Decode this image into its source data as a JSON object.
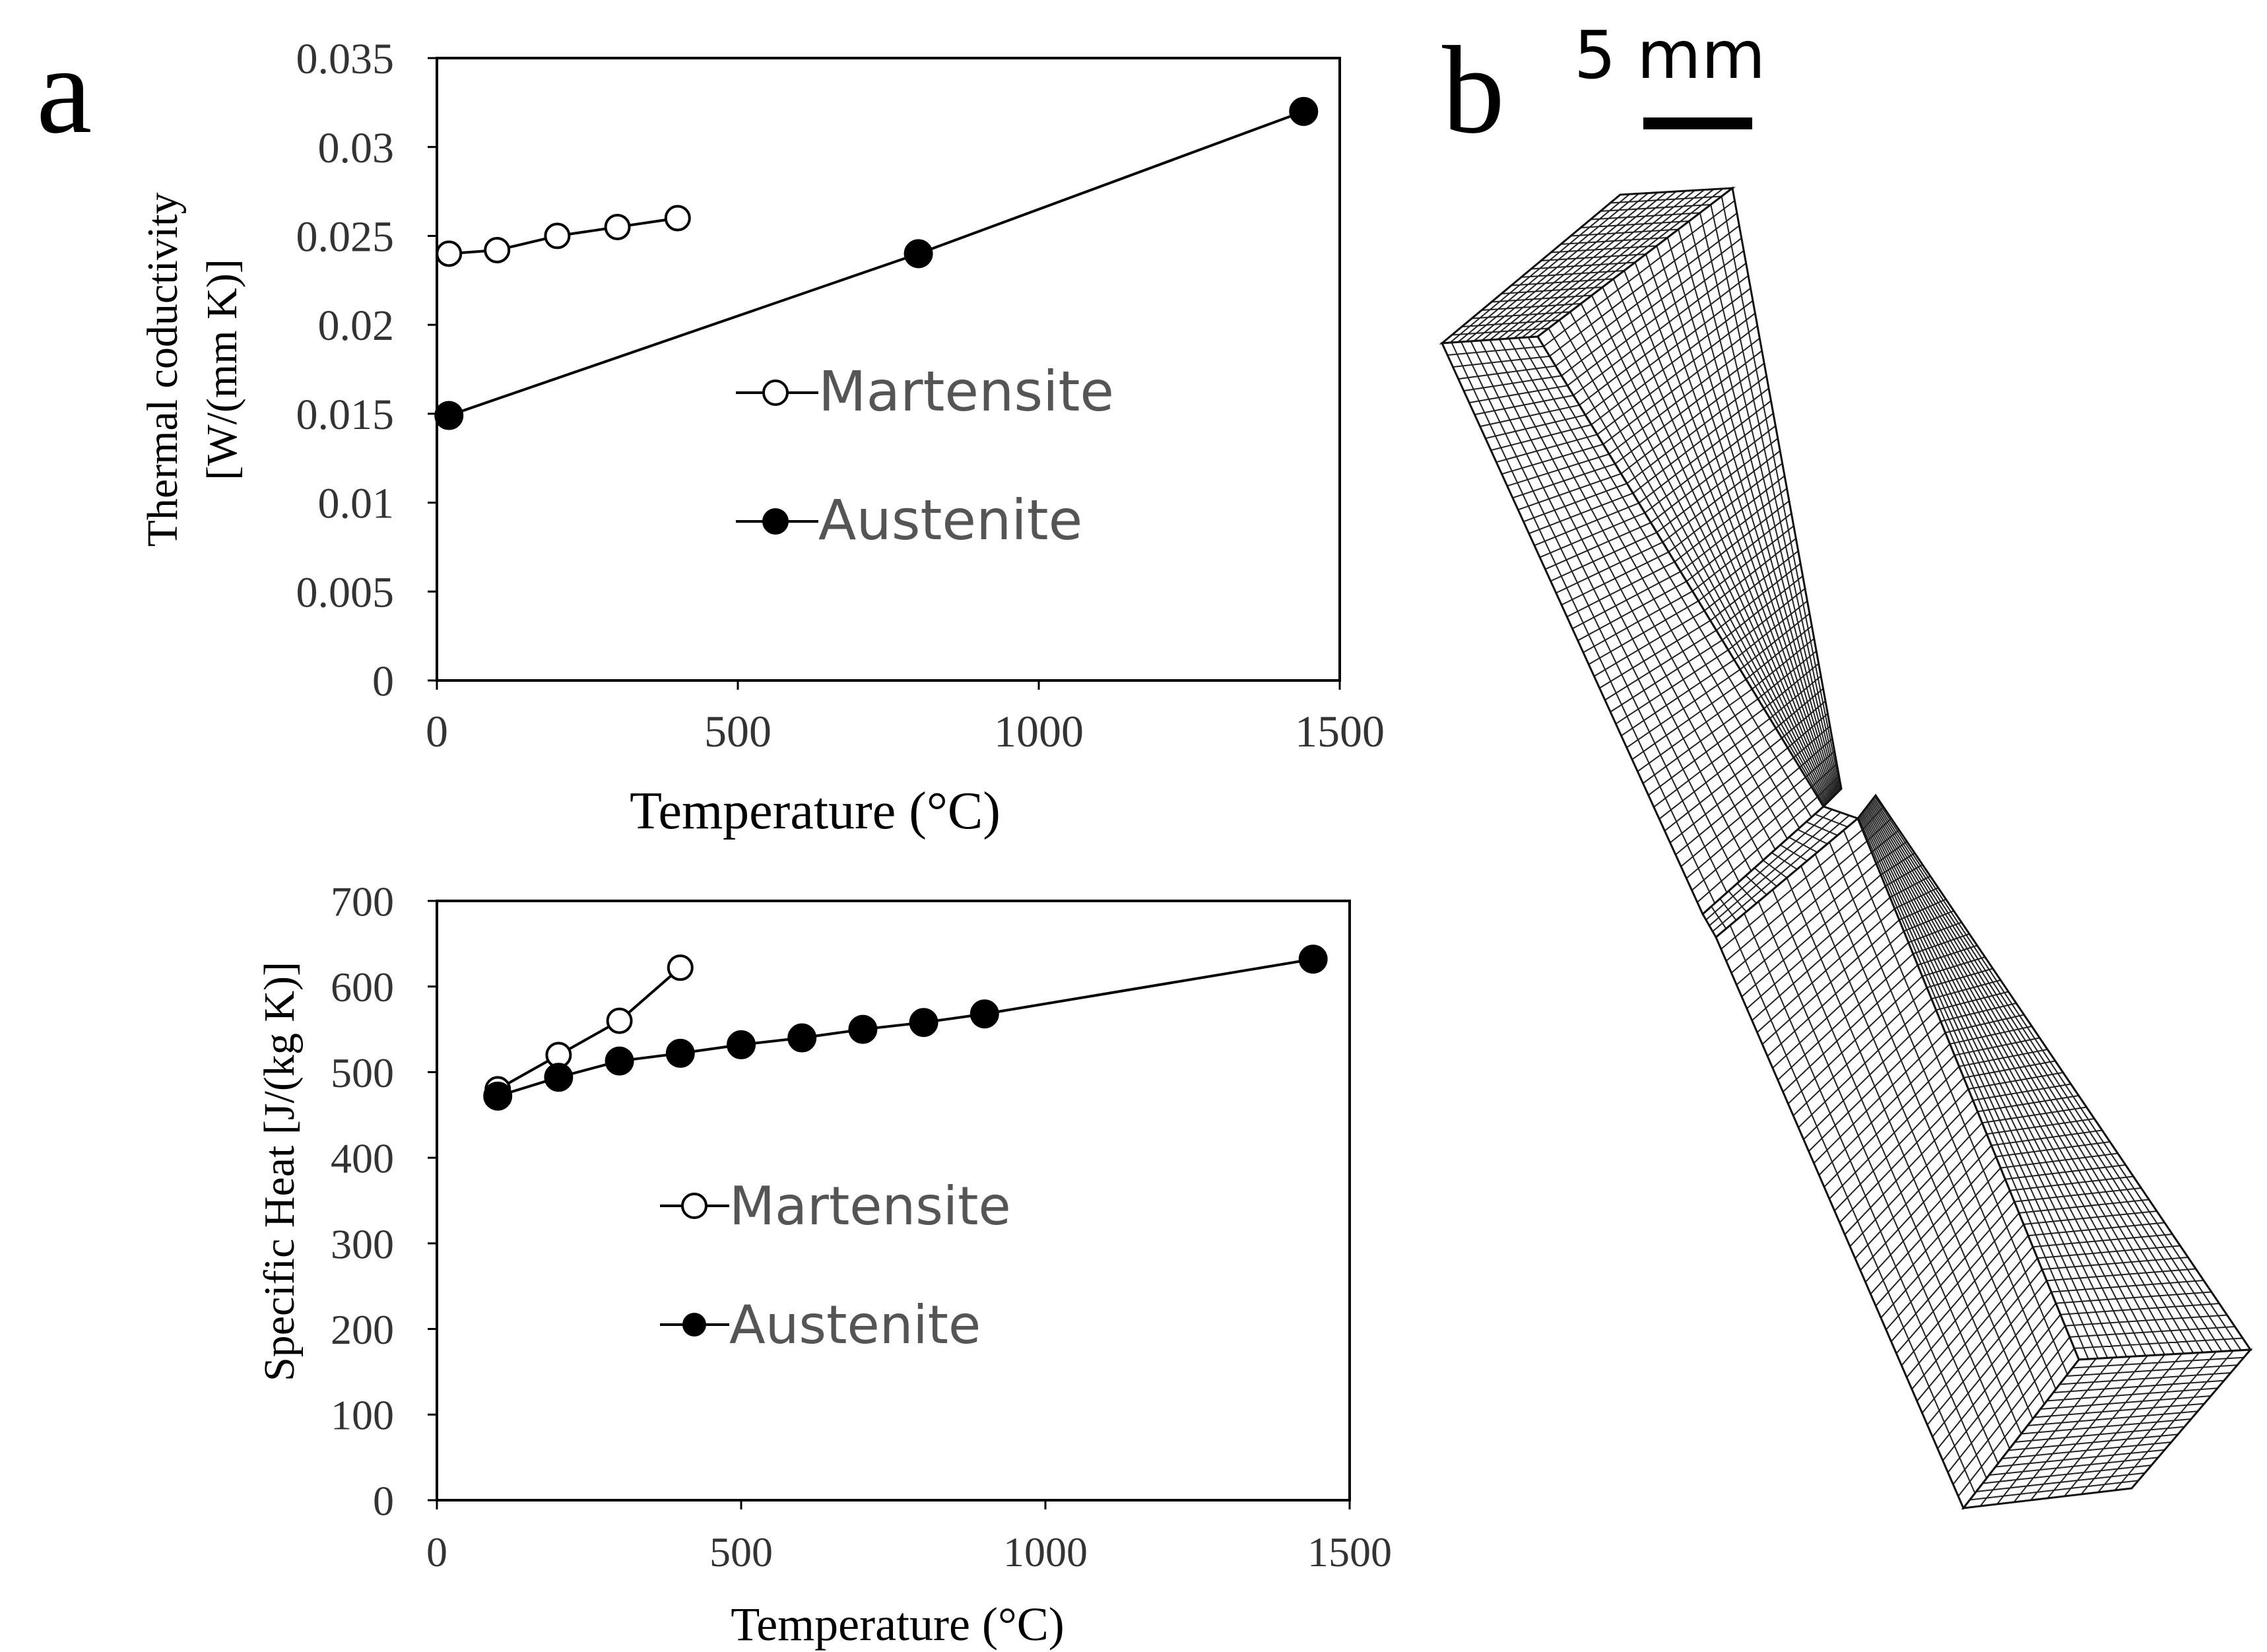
{
  "panel_labels": {
    "a": "a",
    "b": "b"
  },
  "scale_bar_label": "5 mm",
  "chart_data": [
    {
      "type": "line",
      "xlabel": "Temperature (°C)",
      "ylabel_line1": "Thermal coductivity",
      "ylabel_line2": "[W/(mm K)]",
      "xlim": [
        0,
        1500
      ],
      "ylim": [
        0,
        0.035
      ],
      "xticks": [
        0,
        500,
        1000,
        1500
      ],
      "xtick_labels": [
        "0",
        "500",
        "1000",
        "1500"
      ],
      "yticks": [
        0,
        0.005,
        0.01,
        0.015,
        0.02,
        0.025,
        0.03,
        0.035
      ],
      "ytick_labels": [
        "0",
        "0.005",
        "0.01",
        "0.015",
        "0.02",
        "0.025",
        "0.03",
        "0.035"
      ],
      "legend_position": "center-right",
      "series": [
        {
          "name": "Martensite",
          "marker": "open-circle",
          "x": [
            20,
            100,
            200,
            300,
            400
          ],
          "y": [
            0.024,
            0.0242,
            0.025,
            0.0255,
            0.026
          ]
        },
        {
          "name": "Austenite",
          "marker": "filled-circle",
          "x": [
            20,
            800,
            1440
          ],
          "y": [
            0.0149,
            0.024,
            0.032
          ]
        }
      ]
    },
    {
      "type": "line",
      "xlabel": "Temperature (°C)",
      "ylabel_line1": "Specific Heat [J/(kg K)]",
      "xlim": [
        0,
        1500
      ],
      "ylim": [
        0,
        700
      ],
      "xticks": [
        0,
        500,
        1000,
        1500
      ],
      "xtick_labels": [
        "0",
        "500",
        "1000",
        "1500"
      ],
      "yticks": [
        0,
        100,
        200,
        300,
        400,
        500,
        600,
        700
      ],
      "ytick_labels": [
        "0",
        "100",
        "200",
        "300",
        "400",
        "500",
        "600",
        "700"
      ],
      "legend_position": "center",
      "series": [
        {
          "name": "Martensite",
          "marker": "open-circle",
          "x": [
            100,
            200,
            300,
            400
          ],
          "y": [
            480,
            520,
            560,
            622
          ]
        },
        {
          "name": "Austenite",
          "marker": "filled-circle",
          "x": [
            100,
            200,
            300,
            400,
            500,
            600,
            700,
            800,
            900,
            1440
          ],
          "y": [
            472,
            494,
            513,
            522,
            532,
            540,
            550,
            558,
            568,
            632
          ]
        }
      ]
    }
  ]
}
